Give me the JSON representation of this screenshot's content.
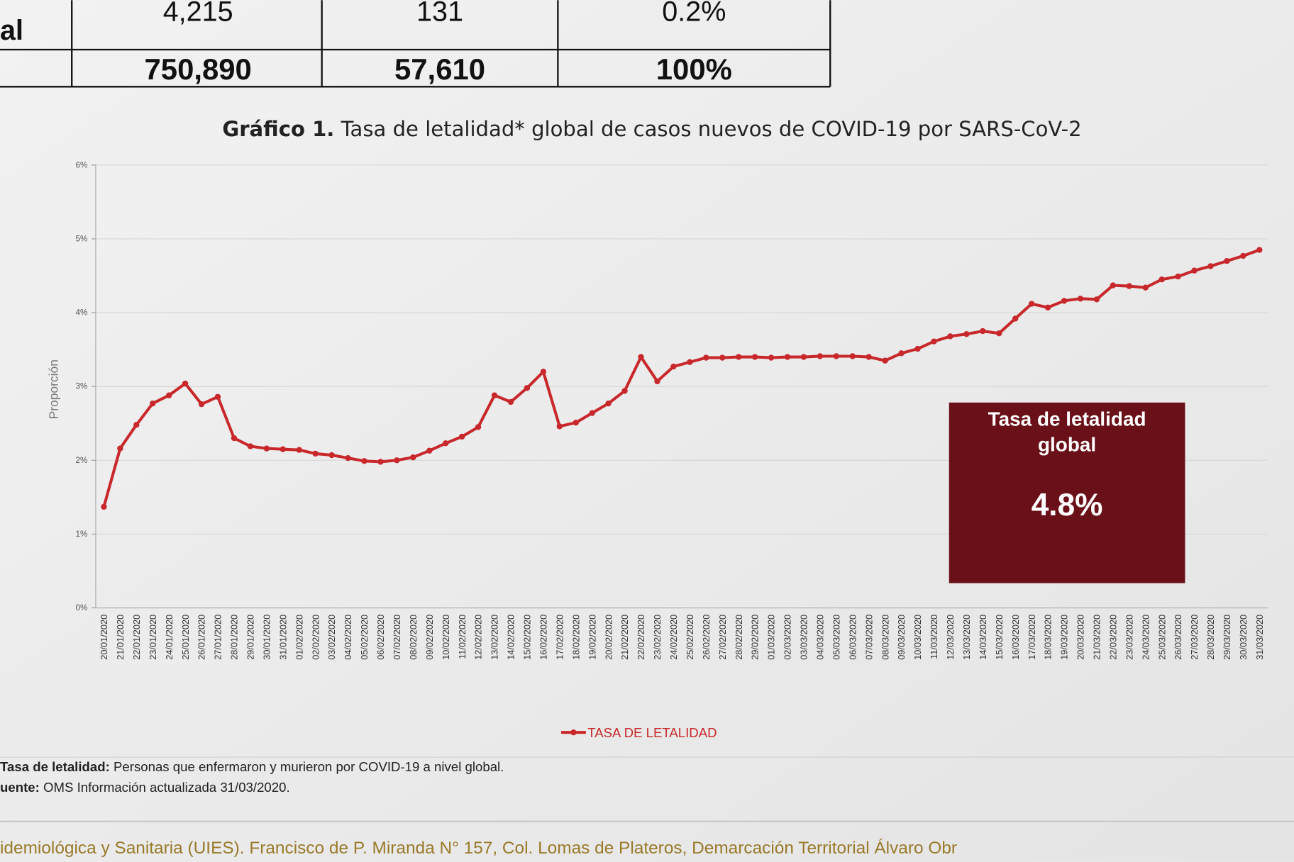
{
  "table": {
    "rows": [
      {
        "label": "al",
        "cells": [
          "4,215",
          "131",
          "0.2%"
        ]
      },
      {
        "cells": [
          "750,890",
          "57,610",
          "100%"
        ]
      }
    ]
  },
  "chart_data": {
    "type": "line",
    "title_prefix": "Gráfico 1.",
    "title": "Tasa de letalidad* global de casos nuevos de COVID-19 por SARS-CoV-2",
    "y_label": "Proporción",
    "categories": [
      "20/01/2020",
      "21/01/2020",
      "22/01/2020",
      "23/01/2020",
      "24/01/2020",
      "25/01/2020",
      "26/01/2020",
      "27/01/2020",
      "28/01/2020",
      "29/01/2020",
      "30/01/2020",
      "31/01/2020",
      "01/02/2020",
      "02/02/2020",
      "03/02/2020",
      "04/02/2020",
      "05/02/2020",
      "06/02/2020",
      "07/02/2020",
      "08/02/2020",
      "09/02/2020",
      "10/02/2020",
      "11/02/2020",
      "12/02/2020",
      "13/02/2020",
      "14/02/2020",
      "15/02/2020",
      "16/02/2020",
      "17/02/2020",
      "18/02/2020",
      "19/02/2020",
      "20/02/2020",
      "21/02/2020",
      "22/02/2020",
      "23/02/2020",
      "24/02/2020",
      "25/02/2020",
      "26/02/2020",
      "27/02/2020",
      "28/02/2020",
      "29/02/2020",
      "01/03/2020",
      "02/03/2020",
      "03/03/2020",
      "04/03/2020",
      "05/03/2020",
      "06/03/2020",
      "07/03/2020",
      "08/03/2020",
      "09/03/2020",
      "10/03/2020",
      "11/03/2020",
      "12/03/2020",
      "13/03/2020",
      "14/03/2020",
      "15/03/2020",
      "16/03/2020",
      "17/03/2020",
      "18/03/2020",
      "19/03/2020",
      "20/03/2020",
      "21/03/2020",
      "22/03/2020",
      "23/03/2020",
      "24/03/2020",
      "25/03/2020",
      "26/03/2020",
      "27/03/2020",
      "28/03/2020",
      "29/03/2020",
      "30/03/2020",
      "31/03/2020"
    ],
    "series": [
      {
        "name": "TASA DE LETALIDAD",
        "color": "#c8282b",
        "values": [
          1.37,
          2.16,
          2.48,
          2.77,
          2.88,
          3.04,
          2.76,
          2.86,
          2.3,
          2.19,
          2.16,
          2.15,
          2.14,
          2.09,
          2.07,
          2.03,
          1.99,
          1.98,
          2.0,
          2.04,
          2.13,
          2.23,
          2.32,
          2.45,
          2.88,
          2.79,
          2.98,
          3.2,
          2.46,
          2.51,
          2.64,
          2.77,
          2.94,
          3.4,
          3.07,
          3.27,
          3.33,
          3.39,
          3.39,
          3.4,
          3.4,
          3.39,
          3.4,
          3.4,
          3.41,
          3.41,
          3.41,
          3.4,
          3.35,
          3.45,
          3.51,
          3.61,
          3.68,
          3.71,
          3.75,
          3.72,
          3.92,
          4.12,
          4.07,
          4.16,
          4.19,
          4.18,
          4.37,
          4.36,
          4.34,
          4.45,
          4.49,
          4.57,
          4.63,
          4.7,
          4.77,
          4.85
        ]
      }
    ],
    "ylim": [
      0,
      6
    ],
    "yticks": [
      {
        "value": 0,
        "label": "0%"
      },
      {
        "value": 1,
        "label": "1%"
      },
      {
        "value": 2,
        "label": "2%"
      },
      {
        "value": 3,
        "label": "3%"
      },
      {
        "value": 4,
        "label": "4%"
      },
      {
        "value": 5,
        "label": "5%"
      },
      {
        "value": 6,
        "label": "6%"
      }
    ],
    "grid": true,
    "legend": "bottom",
    "callout": {
      "title": "Tasa de letalidad global",
      "value": "4.8%"
    }
  },
  "notes": [
    {
      "label": "Tasa de letalidad:",
      "text": "Personas que enfermaron y murieron por COVID-19 a nivel global."
    },
    {
      "label": "uente:",
      "text": "OMS Información actualizada 31/03/2020."
    }
  ],
  "footer": "idemiológica y Sanitaria (UIES). Francisco de P. Miranda N° 157, Col. Lomas de Plateros, Demarcación Territorial Álvaro Obr"
}
